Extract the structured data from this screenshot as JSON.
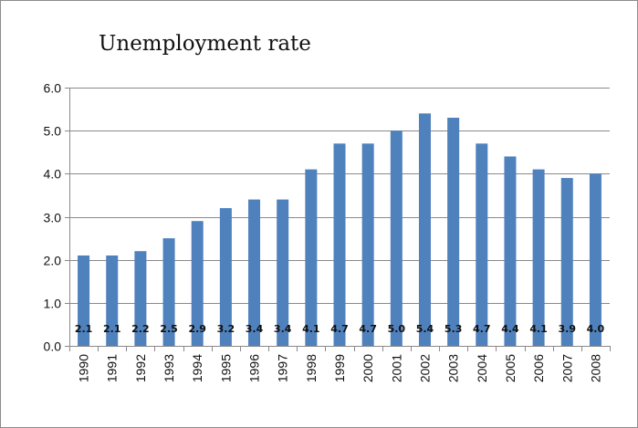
{
  "chart_data": {
    "type": "bar",
    "title": "Unemployment rate",
    "xlabel": "",
    "ylabel": "",
    "categories": [
      "1990",
      "1991",
      "1992",
      "1993",
      "1994",
      "1995",
      "1996",
      "1997",
      "1998",
      "1999",
      "2000",
      "2001",
      "2002",
      "2003",
      "2004",
      "2005",
      "2006",
      "2007",
      "2008"
    ],
    "values": [
      2.1,
      2.1,
      2.2,
      2.5,
      2.9,
      3.2,
      3.4,
      3.4,
      4.1,
      4.7,
      4.7,
      5.0,
      5.4,
      5.3,
      4.7,
      4.4,
      4.1,
      3.9,
      4.0
    ],
    "data_labels": [
      "2.1",
      "2.1",
      "2.2",
      "2.5",
      "2.9",
      "3.2",
      "3.4",
      "3.4",
      "4.1",
      "4.7",
      "4.7",
      "5.0",
      "5.4",
      "5.3",
      "4.7",
      "4.4",
      "4.1",
      "3.9",
      "4.0"
    ],
    "yticks": [
      "0.0",
      "1.0",
      "2.0",
      "3.0",
      "4.0",
      "5.0",
      "6.0"
    ],
    "ylim": [
      0,
      6
    ],
    "grid": true,
    "legend": "none",
    "bar_color": "#4f81bd"
  }
}
